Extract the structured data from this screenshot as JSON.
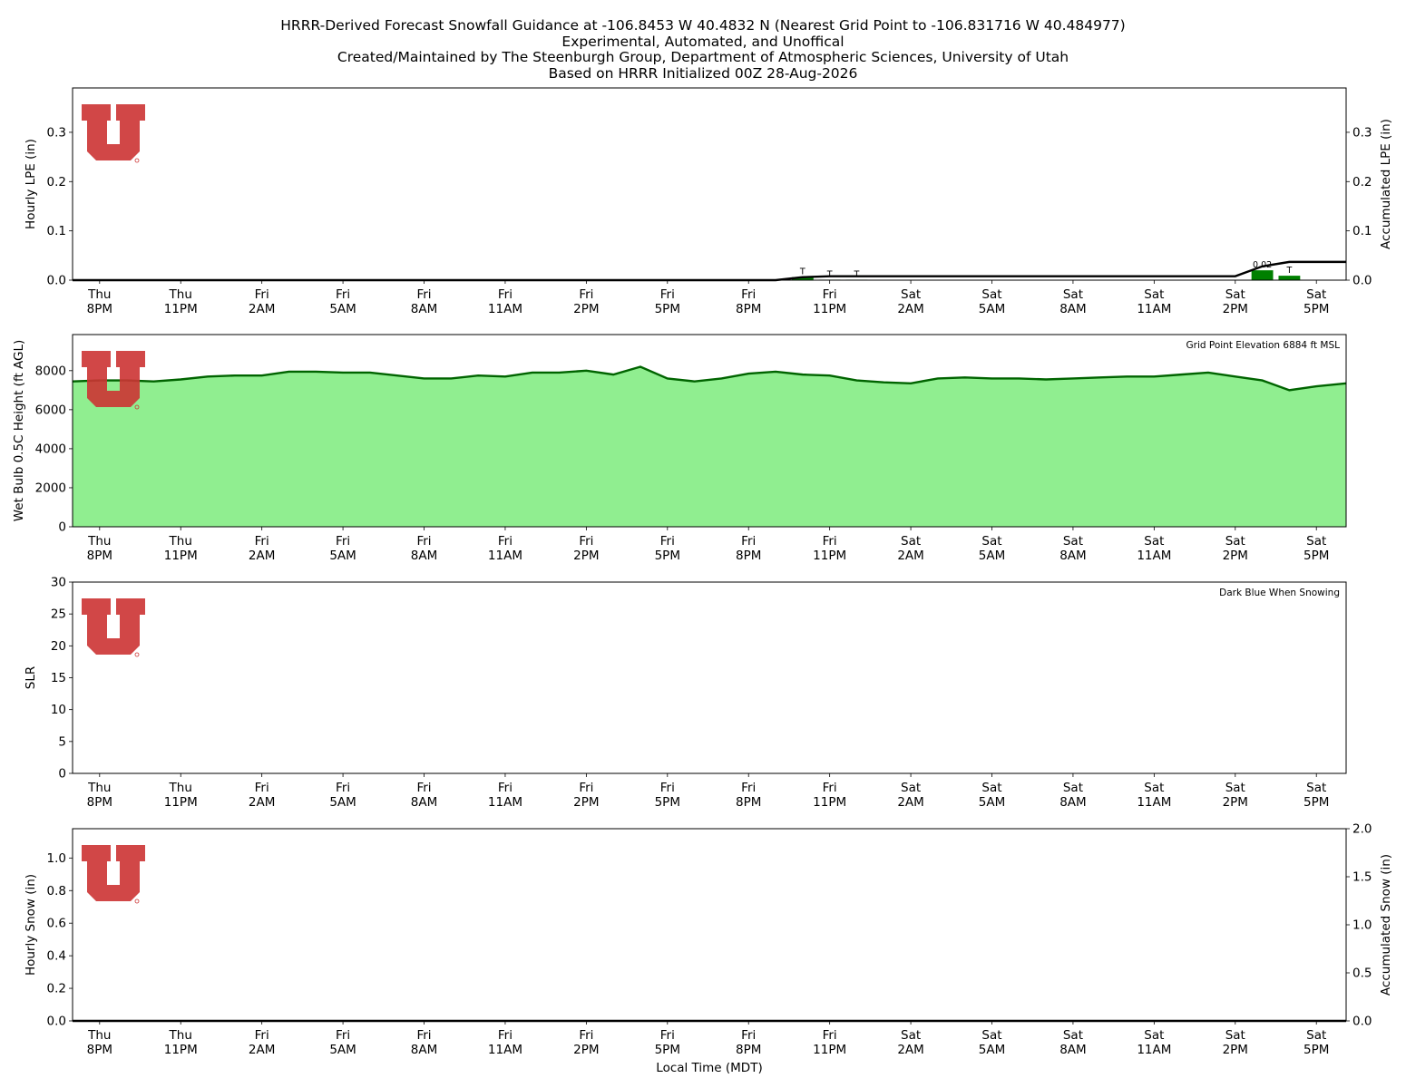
{
  "title_lines": [
    "HRRR-Derived Forecast Snowfall Guidance at -106.8453 W 40.4832 N (Nearest Grid Point to -106.831716 W 40.484977)",
    "Experimental, Automated, and Unoffical",
    "Created/Maintained by The Steenburgh Group, Department of Atmospheric Sciences, University of Utah",
    "Based on HRRR Initialized 00Z 28-Aug-2026"
  ],
  "x_axis": {
    "label": "Local Time (MDT)",
    "ticks": [
      {
        "day": "Thu",
        "time": "8PM",
        "hour": 0
      },
      {
        "day": "Thu",
        "time": "11PM",
        "hour": 3
      },
      {
        "day": "Fri",
        "time": "2AM",
        "hour": 6
      },
      {
        "day": "Fri",
        "time": "5AM",
        "hour": 9
      },
      {
        "day": "Fri",
        "time": "8AM",
        "hour": 12
      },
      {
        "day": "Fri",
        "time": "11AM",
        "hour": 15
      },
      {
        "day": "Fri",
        "time": "2PM",
        "hour": 18
      },
      {
        "day": "Fri",
        "time": "5PM",
        "hour": 21
      },
      {
        "day": "Fri",
        "time": "8PM",
        "hour": 24
      },
      {
        "day": "Fri",
        "time": "11PM",
        "hour": 27
      },
      {
        "day": "Sat",
        "time": "2AM",
        "hour": 30
      },
      {
        "day": "Sat",
        "time": "5AM",
        "hour": 33
      },
      {
        "day": "Sat",
        "time": "8AM",
        "hour": 36
      },
      {
        "day": "Sat",
        "time": "11AM",
        "hour": 39
      },
      {
        "day": "Sat",
        "time": "2PM",
        "hour": 42
      },
      {
        "day": "Sat",
        "time": "5PM",
        "hour": 45
      }
    ],
    "range_hours": [
      -1,
      46.1
    ]
  },
  "colors": {
    "bar": "#008000",
    "accum_line": "#000000",
    "wetbulb_fill": "#90ee90",
    "wetbulb_line": "#006400",
    "logo": "#cc3333"
  },
  "chart_data": [
    {
      "id": "lpe",
      "type": "bar",
      "ylabel": "Hourly LPE (in)",
      "ylabel_right": "Accumulated LPE (in)",
      "ylim": [
        0,
        0.39
      ],
      "ylim_right": [
        0,
        0.39
      ],
      "yticks": [
        0.0,
        0.1,
        0.2,
        0.3
      ],
      "yticks_right": [
        0.0,
        0.1,
        0.2,
        0.3
      ],
      "hourly": [
        {
          "hour": 26,
          "value": 0.006,
          "label": "T"
        },
        {
          "hour": 27,
          "value": 0.001,
          "label": "T"
        },
        {
          "hour": 28,
          "value": 0.001,
          "label": "T"
        },
        {
          "hour": 43,
          "value": 0.02,
          "label": "0.02"
        },
        {
          "hour": 44,
          "value": 0.009,
          "label": "T"
        }
      ],
      "accumulated": {
        "x": [
          -1,
          25,
          26,
          27,
          42,
          43,
          44,
          46.1
        ],
        "y": [
          0,
          0,
          0.006,
          0.008,
          0.008,
          0.028,
          0.037,
          0.037
        ]
      }
    },
    {
      "id": "wetbulb",
      "type": "area",
      "ylabel": "Wet Bulb 0.5C Height (ft AGL)",
      "annotation": "Grid Point Elevation 6884 ft MSL",
      "ylim": [
        0,
        9850
      ],
      "yticks": [
        0,
        2000,
        4000,
        6000,
        8000
      ],
      "x": [
        -1,
        0,
        1,
        2,
        3,
        4,
        5,
        6,
        7,
        8,
        9,
        10,
        11,
        12,
        13,
        14,
        15,
        16,
        17,
        18,
        19,
        20,
        21,
        22,
        23,
        24,
        25,
        26,
        27,
        28,
        29,
        30,
        31,
        32,
        33,
        34,
        35,
        36,
        37,
        38,
        39,
        40,
        41,
        42,
        43,
        44,
        45,
        46.1
      ],
      "y": [
        7450,
        7500,
        7500,
        7450,
        7550,
        7700,
        7750,
        7750,
        7950,
        7950,
        7900,
        7900,
        7750,
        7600,
        7600,
        7750,
        7700,
        7900,
        7900,
        8000,
        7800,
        8200,
        7600,
        7450,
        7600,
        7850,
        7950,
        7800,
        7750,
        7500,
        7400,
        7350,
        7600,
        7650,
        7600,
        7600,
        7550,
        7600,
        7650,
        7700,
        7700,
        7800,
        7900,
        7700,
        7500,
        7000,
        7200,
        7350
      ]
    },
    {
      "id": "slr",
      "type": "line",
      "ylabel": "SLR",
      "annotation": "Dark Blue When Snowing",
      "ylim": [
        0,
        30
      ],
      "yticks": [
        0,
        5,
        10,
        15,
        20,
        25,
        30
      ],
      "x": [],
      "y": []
    },
    {
      "id": "snow",
      "type": "bar",
      "ylabel": "Hourly Snow (in)",
      "ylabel_right": "Accumulated Snow (in)",
      "ylim": [
        0,
        1.18
      ],
      "ylim_right": [
        0,
        2.0
      ],
      "yticks": [
        0.0,
        0.2,
        0.4,
        0.6,
        0.8,
        1.0
      ],
      "yticks_right": [
        0.0,
        0.5,
        1.0,
        1.5,
        2.0
      ],
      "hourly": [],
      "accumulated": {
        "x": [
          -1,
          46.1
        ],
        "y": [
          0,
          0
        ]
      }
    }
  ]
}
